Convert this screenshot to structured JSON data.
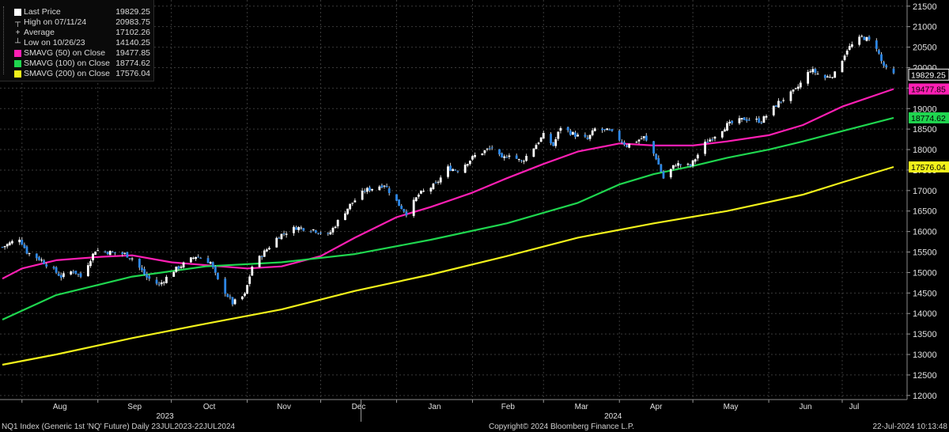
{
  "legend": {
    "items": [
      {
        "label": "Last Price",
        "value": "19829.25",
        "color": "#ffffff",
        "glyph": "square"
      },
      {
        "label": "High on 07/11/24",
        "value": "20983.75",
        "color": "#cfcfcf",
        "glyph": "high"
      },
      {
        "label": "Average",
        "value": "17102.26",
        "color": "#cfcfcf",
        "glyph": "average"
      },
      {
        "label": "Low on 10/26/23",
        "value": "14140.25",
        "color": "#cfcfcf",
        "glyph": "low"
      },
      {
        "label": "SMAVG (50)  on Close",
        "value": "19477.85",
        "color": "#ff1fb4",
        "glyph": "square"
      },
      {
        "label": "SMAVG (100)  on Close",
        "value": "18774.62",
        "color": "#1fd64f",
        "glyph": "square"
      },
      {
        "label": "SMAVG (200)  on Close",
        "value": "17576.04",
        "color": "#f2f21b",
        "glyph": "square"
      }
    ]
  },
  "footer": {
    "left": "NQ1 Index (Generic 1st 'NQ' Future)  Daily 23JUL2023-22JUL2024",
    "center": "Copyright© 2024 Bloomberg Finance L.P.",
    "right": "22-Jul-2024 10:13:48"
  },
  "chart_data": {
    "type": "candlestick",
    "ylim": [
      11900,
      21650
    ],
    "y_ticks": [
      12000,
      12500,
      13000,
      13500,
      14000,
      14500,
      15000,
      15500,
      16000,
      16500,
      17000,
      17500,
      18000,
      18500,
      19000,
      19500,
      20000,
      20500,
      21000,
      21500
    ],
    "x_start": "2023-07-24",
    "x_end": "2024-07-22",
    "month_ticks": [
      {
        "label": "Aug",
        "date": "2023-08-01"
      },
      {
        "label": "Sep",
        "date": "2023-09-01"
      },
      {
        "label": "Oct",
        "date": "2023-10-01"
      },
      {
        "label": "Nov",
        "date": "2023-11-01"
      },
      {
        "label": "Dec",
        "date": "2023-12-01"
      },
      {
        "label": "Jan",
        "date": "2024-01-01"
      },
      {
        "label": "Feb",
        "date": "2024-02-01"
      },
      {
        "label": "Mar",
        "date": "2024-03-01"
      },
      {
        "label": "Apr",
        "date": "2024-04-01"
      },
      {
        "label": "May",
        "date": "2024-05-01"
      },
      {
        "label": "Jun",
        "date": "2024-06-01"
      },
      {
        "label": "Jul",
        "date": "2024-07-01"
      }
    ],
    "year_labels": [
      {
        "label": "2023",
        "date": "2023-10-01"
      },
      {
        "label": "2024",
        "date": "2024-04-01"
      }
    ],
    "year_divider_date": "2024-01-01",
    "price_path": [
      [
        "2023-07-24",
        15620
      ],
      [
        "2023-07-31",
        15840
      ],
      [
        "2023-08-03",
        15500
      ],
      [
        "2023-08-09",
        15300
      ],
      [
        "2023-08-17",
        14900
      ],
      [
        "2023-08-22",
        15050
      ],
      [
        "2023-08-25",
        14900
      ],
      [
        "2023-08-31",
        15550
      ],
      [
        "2023-09-05",
        15500
      ],
      [
        "2023-09-12",
        15450
      ],
      [
        "2023-09-15",
        15350
      ],
      [
        "2023-09-21",
        14880
      ],
      [
        "2023-09-26",
        14700
      ],
      [
        "2023-10-02",
        15050
      ],
      [
        "2023-10-11",
        15400
      ],
      [
        "2023-10-17",
        15250
      ],
      [
        "2023-10-20",
        14800
      ],
      [
        "2023-10-26",
        14250
      ],
      [
        "2023-10-31",
        14450
      ],
      [
        "2023-11-03",
        15150
      ],
      [
        "2023-11-08",
        15500
      ],
      [
        "2023-11-14",
        15900
      ],
      [
        "2023-11-21",
        16100
      ],
      [
        "2023-11-28",
        16050
      ],
      [
        "2023-12-04",
        15900
      ],
      [
        "2023-12-08",
        16250
      ],
      [
        "2023-12-13",
        16650
      ],
      [
        "2023-12-19",
        17000
      ],
      [
        "2023-12-27",
        17150
      ],
      [
        "2024-01-02",
        16650
      ],
      [
        "2024-01-05",
        16450
      ],
      [
        "2024-01-10",
        16900
      ],
      [
        "2024-01-17",
        17150
      ],
      [
        "2024-01-22",
        17550
      ],
      [
        "2024-01-26",
        17500
      ],
      [
        "2024-01-30",
        17700
      ],
      [
        "2024-02-02",
        17850
      ],
      [
        "2024-02-09",
        18050
      ],
      [
        "2024-02-13",
        17750
      ],
      [
        "2024-02-16",
        17900
      ],
      [
        "2024-02-21",
        17700
      ],
      [
        "2024-02-26",
        18050
      ],
      [
        "2024-03-01",
        18350
      ],
      [
        "2024-03-05",
        18100
      ],
      [
        "2024-03-08",
        18550
      ],
      [
        "2024-03-14",
        18350
      ],
      [
        "2024-03-19",
        18250
      ],
      [
        "2024-03-22",
        18500
      ],
      [
        "2024-03-28",
        18450
      ],
      [
        "2024-04-04",
        18100
      ],
      [
        "2024-04-11",
        18300
      ],
      [
        "2024-04-16",
        17800
      ],
      [
        "2024-04-19",
        17300
      ],
      [
        "2024-04-24",
        17650
      ],
      [
        "2024-04-30",
        17600
      ],
      [
        "2024-05-06",
        18150
      ],
      [
        "2024-05-15",
        18600
      ],
      [
        "2024-05-22",
        18750
      ],
      [
        "2024-05-29",
        18700
      ],
      [
        "2024-06-05",
        19150
      ],
      [
        "2024-06-12",
        19450
      ],
      [
        "2024-06-18",
        19950
      ],
      [
        "2024-06-24",
        19750
      ],
      [
        "2024-06-28",
        19850
      ],
      [
        "2024-07-03",
        20450
      ],
      [
        "2024-07-09",
        20750
      ],
      [
        "2024-07-11",
        20700
      ],
      [
        "2024-07-15",
        20500
      ],
      [
        "2024-07-17",
        20150
      ],
      [
        "2024-07-19",
        19950
      ],
      [
        "2024-07-22",
        19829.25
      ]
    ],
    "series": [
      {
        "name": "SMAVG (50)  on Close",
        "color": "#ff1fb4",
        "last": "19477.85",
        "points": [
          [
            "2023-07-24",
            14850
          ],
          [
            "2023-08-01",
            15100
          ],
          [
            "2023-08-15",
            15300
          ],
          [
            "2023-09-01",
            15380
          ],
          [
            "2023-09-15",
            15420
          ],
          [
            "2023-10-01",
            15250
          ],
          [
            "2023-10-15",
            15180
          ],
          [
            "2023-11-01",
            15100
          ],
          [
            "2023-11-15",
            15150
          ],
          [
            "2023-12-01",
            15400
          ],
          [
            "2023-12-15",
            15850
          ],
          [
            "2024-01-01",
            16350
          ],
          [
            "2024-01-15",
            16600
          ],
          [
            "2024-02-01",
            16950
          ],
          [
            "2024-02-15",
            17300
          ],
          [
            "2024-03-01",
            17650
          ],
          [
            "2024-03-15",
            17950
          ],
          [
            "2024-04-01",
            18150
          ],
          [
            "2024-04-15",
            18100
          ],
          [
            "2024-05-01",
            18100
          ],
          [
            "2024-05-15",
            18200
          ],
          [
            "2024-06-01",
            18350
          ],
          [
            "2024-06-15",
            18600
          ],
          [
            "2024-07-01",
            19050
          ],
          [
            "2024-07-22",
            19477.85
          ]
        ]
      },
      {
        "name": "SMAVG (100)  on Close",
        "color": "#1fd64f",
        "last": "18774.62",
        "points": [
          [
            "2023-07-24",
            13850
          ],
          [
            "2023-08-15",
            14450
          ],
          [
            "2023-09-15",
            14900
          ],
          [
            "2023-10-15",
            15150
          ],
          [
            "2023-11-15",
            15250
          ],
          [
            "2023-12-15",
            15450
          ],
          [
            "2024-01-15",
            15800
          ],
          [
            "2024-02-15",
            16200
          ],
          [
            "2024-03-15",
            16700
          ],
          [
            "2024-04-01",
            17150
          ],
          [
            "2024-04-15",
            17400
          ],
          [
            "2024-05-01",
            17600
          ],
          [
            "2024-05-15",
            17800
          ],
          [
            "2024-06-01",
            18000
          ],
          [
            "2024-06-15",
            18200
          ],
          [
            "2024-07-01",
            18450
          ],
          [
            "2024-07-22",
            18774.62
          ]
        ]
      },
      {
        "name": "SMAVG (200)  on Close",
        "color": "#f2f21b",
        "last": "17576.04",
        "points": [
          [
            "2023-07-24",
            12750
          ],
          [
            "2023-08-15",
            13000
          ],
          [
            "2023-09-15",
            13400
          ],
          [
            "2023-10-15",
            13750
          ],
          [
            "2023-11-15",
            14100
          ],
          [
            "2023-12-15",
            14550
          ],
          [
            "2024-01-15",
            14950
          ],
          [
            "2024-02-15",
            15400
          ],
          [
            "2024-03-15",
            15850
          ],
          [
            "2024-04-15",
            16200
          ],
          [
            "2024-05-15",
            16500
          ],
          [
            "2024-06-15",
            16900
          ],
          [
            "2024-07-01",
            17200
          ],
          [
            "2024-07-22",
            17576.04
          ]
        ]
      }
    ],
    "last_price": {
      "value": "19829.25",
      "color": "#ffffff"
    },
    "candle_colors": {
      "up": "#ffffff",
      "down": "#2d87e6",
      "wick": "#cfcfcf"
    }
  }
}
